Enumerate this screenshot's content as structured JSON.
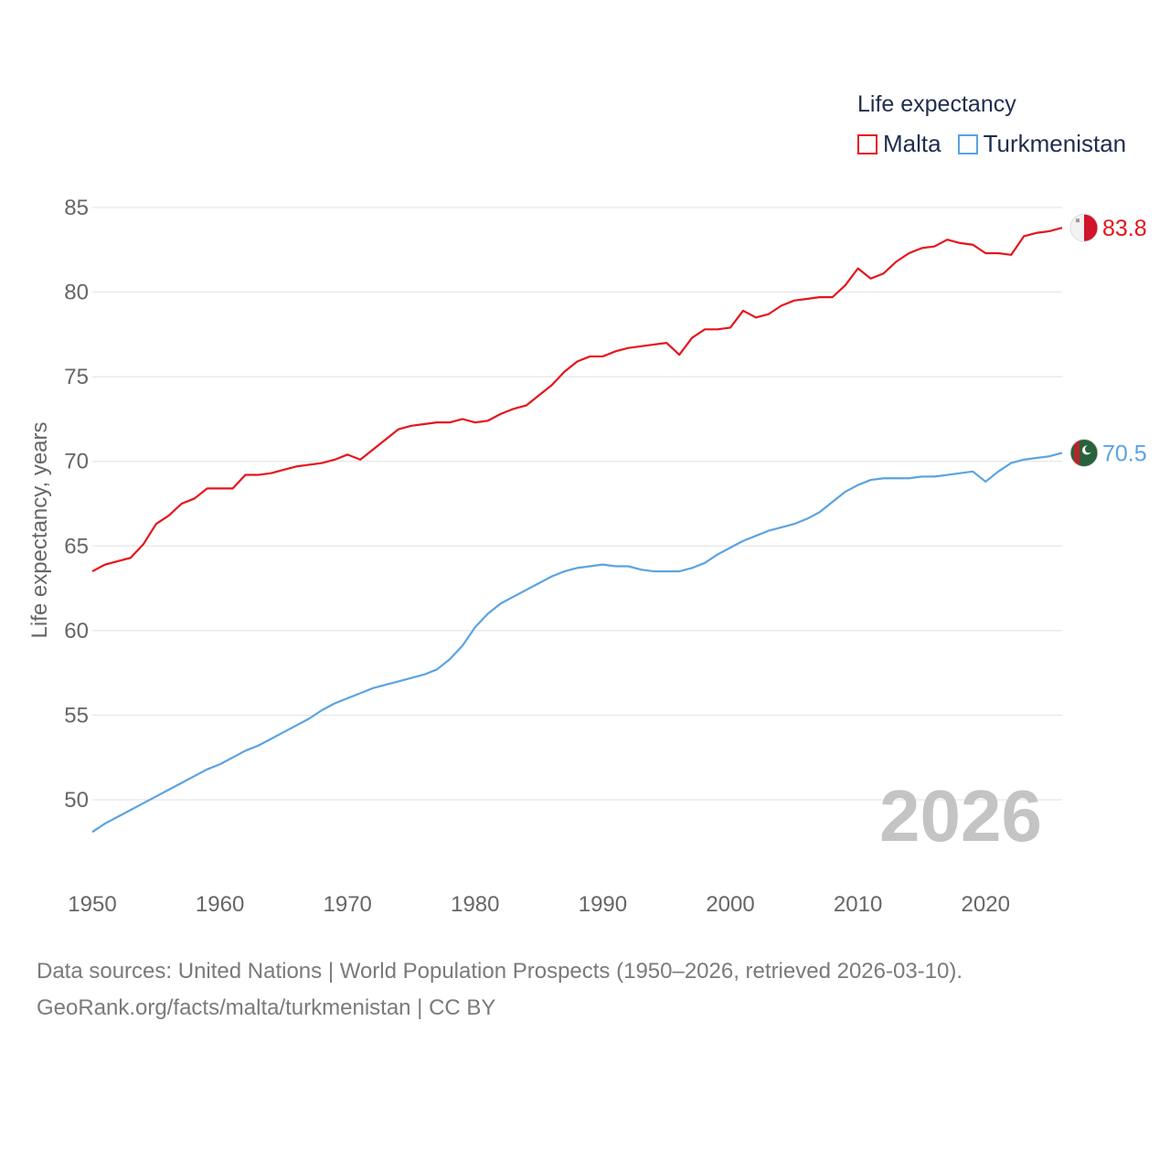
{
  "chart_data": {
    "type": "line",
    "legend_title": "Life expectancy",
    "ylabel": "Life expectancy, years",
    "xlabel": "",
    "xlim": [
      1950,
      2026
    ],
    "ylim": [
      46,
      86
    ],
    "x_ticks": [
      1950,
      1960,
      1970,
      1980,
      1990,
      2000,
      2010,
      2020
    ],
    "y_ticks": [
      50,
      55,
      60,
      65,
      70,
      75,
      80,
      85
    ],
    "year_label": "2026",
    "legend_position": "top-right",
    "x": [
      1950,
      1951,
      1952,
      1953,
      1954,
      1955,
      1956,
      1957,
      1958,
      1959,
      1960,
      1961,
      1962,
      1963,
      1964,
      1965,
      1966,
      1967,
      1968,
      1969,
      1970,
      1971,
      1972,
      1973,
      1974,
      1975,
      1976,
      1977,
      1978,
      1979,
      1980,
      1981,
      1982,
      1983,
      1984,
      1985,
      1986,
      1987,
      1988,
      1989,
      1990,
      1991,
      1992,
      1993,
      1994,
      1995,
      1996,
      1997,
      1998,
      1999,
      2000,
      2001,
      2002,
      2003,
      2004,
      2005,
      2006,
      2007,
      2008,
      2009,
      2010,
      2011,
      2012,
      2013,
      2014,
      2015,
      2016,
      2017,
      2018,
      2019,
      2020,
      2021,
      2022,
      2023,
      2024,
      2025,
      2026
    ],
    "series": [
      {
        "name": "Malta",
        "color": "#e5151b",
        "end_label": "83.8",
        "flag": "malta-flag-icon",
        "values": [
          63.5,
          63.9,
          64.1,
          64.3,
          65.1,
          66.3,
          66.8,
          67.5,
          67.8,
          68.4,
          68.4,
          68.4,
          69.2,
          69.2,
          69.3,
          69.5,
          69.7,
          69.8,
          69.9,
          70.1,
          70.4,
          70.1,
          70.7,
          71.3,
          71.9,
          72.1,
          72.2,
          72.3,
          72.3,
          72.5,
          72.3,
          72.4,
          72.8,
          73.1,
          73.3,
          73.9,
          74.5,
          75.3,
          75.9,
          76.2,
          76.2,
          76.5,
          76.7,
          76.8,
          76.9,
          77.0,
          76.3,
          77.3,
          77.8,
          77.8,
          77.9,
          78.9,
          78.5,
          78.7,
          79.2,
          79.5,
          79.6,
          79.7,
          79.7,
          80.4,
          81.4,
          80.8,
          81.1,
          81.8,
          82.3,
          82.6,
          82.7,
          83.1,
          82.9,
          82.8,
          82.3,
          82.3,
          82.2,
          83.3,
          83.5,
          83.6,
          83.8
        ]
      },
      {
        "name": "Turkmenistan",
        "color": "#5ba3e0",
        "end_label": "70.5",
        "flag": "turkmenistan-flag-icon",
        "values": [
          48.1,
          48.6,
          49.0,
          49.4,
          49.8,
          50.2,
          50.6,
          51.0,
          51.4,
          51.8,
          52.1,
          52.5,
          52.9,
          53.2,
          53.6,
          54.0,
          54.4,
          54.8,
          55.3,
          55.7,
          56.0,
          56.3,
          56.6,
          56.8,
          57.0,
          57.2,
          57.4,
          57.7,
          58.3,
          59.1,
          60.2,
          61.0,
          61.6,
          62.0,
          62.4,
          62.8,
          63.2,
          63.5,
          63.7,
          63.8,
          63.9,
          63.8,
          63.8,
          63.6,
          63.5,
          63.5,
          63.5,
          63.7,
          64.0,
          64.5,
          64.9,
          65.3,
          65.6,
          65.9,
          66.1,
          66.3,
          66.6,
          67.0,
          67.6,
          68.2,
          68.6,
          68.9,
          69.0,
          69.0,
          69.0,
          69.1,
          69.1,
          69.2,
          69.3,
          69.4,
          68.8,
          69.4,
          69.9,
          70.1,
          70.2,
          70.3,
          70.5
        ]
      }
    ]
  },
  "footer": {
    "line1": "Data sources: United Nations | World Population Prospects (1950–2026, retrieved 2026-03-10).",
    "line2": "GeoRank.org/facts/malta/turkmenistan | CC BY"
  }
}
